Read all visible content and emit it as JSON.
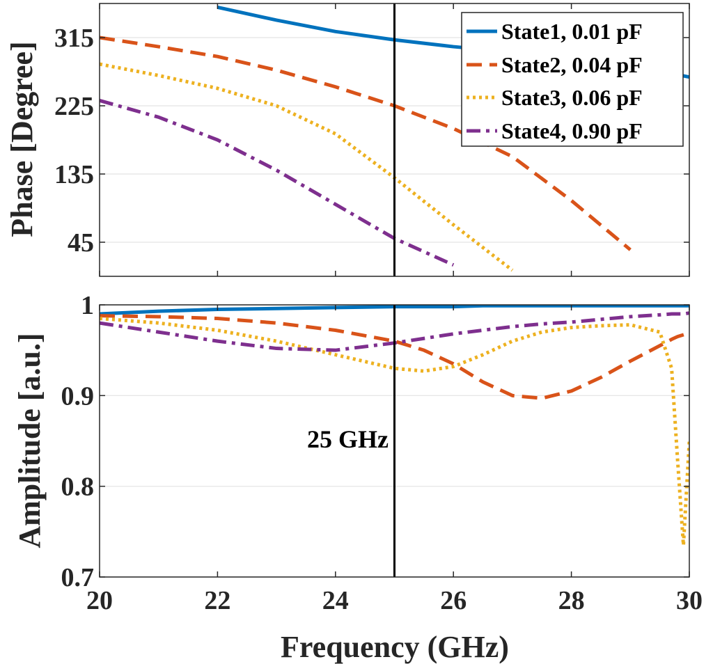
{
  "chart_data": [
    {
      "type": "line",
      "panel": "phase",
      "title": "",
      "xlabel": "",
      "ylabel": "Phase [Degree]",
      "xlim": [
        20,
        30
      ],
      "ylim": [
        0,
        360
      ],
      "yticks": [
        45,
        135,
        225,
        315
      ],
      "yticklabels": [
        "45",
        "135",
        "225",
        "315"
      ],
      "grid": true,
      "legend_position": "top-right",
      "x": [
        20,
        21,
        22,
        23,
        24,
        25,
        26,
        27,
        28,
        29,
        30
      ],
      "series": [
        {
          "name": "State1, 0.01 pF",
          "color": "#0072BD",
          "style": "solid",
          "values": [
            null,
            null,
            355,
            338,
            323,
            312,
            303,
            296,
            288,
            278,
            263
          ]
        },
        {
          "name": "State2, 0.04 pF",
          "color": "#D95319",
          "style": "dashed",
          "values": [
            315,
            303,
            290,
            272,
            250,
            225,
            195,
            158,
            100,
            35,
            null
          ]
        },
        {
          "name": "State3, 0.06 pF",
          "color": "#EDB120",
          "style": "dotted",
          "values": [
            280,
            265,
            248,
            225,
            188,
            130,
            68,
            8,
            null,
            null,
            null
          ]
        },
        {
          "name": "State4, 0.90 pF",
          "color": "#7E2F8E",
          "style": "dashdot",
          "values": [
            232,
            210,
            180,
            140,
            95,
            50,
            15,
            null,
            null,
            null,
            null
          ]
        }
      ],
      "annotations": [
        {
          "type": "vline",
          "x": 25
        }
      ]
    },
    {
      "type": "line",
      "panel": "amplitude",
      "title": "",
      "xlabel": "Frequency (GHz)",
      "ylabel": "Amplitude [a.u.]",
      "xlim": [
        20,
        30
      ],
      "ylim": [
        0.7,
        1.0
      ],
      "xticks": [
        20,
        22,
        24,
        26,
        28,
        30
      ],
      "xticklabels": [
        "20",
        "22",
        "24",
        "26",
        "28",
        "30"
      ],
      "yticks": [
        0.7,
        0.8,
        0.9,
        1.0
      ],
      "yticklabels": [
        "0.7",
        "0.8",
        "0.9",
        "1"
      ],
      "grid": true,
      "x": [
        20,
        21,
        22,
        23,
        24,
        25,
        25.5,
        26,
        26.5,
        27,
        27.5,
        28,
        28.5,
        29,
        29.5,
        29.7,
        29.8,
        29.9,
        30
      ],
      "series": [
        {
          "name": "State1, 0.01 pF",
          "color": "#0072BD",
          "style": "solid",
          "values": [
            0.99,
            0.993,
            0.995,
            0.996,
            0.997,
            0.998,
            0.998,
            0.998,
            0.999,
            0.999,
            0.999,
            0.999,
            0.999,
            0.999,
            0.999,
            0.999,
            0.999,
            0.999,
            0.999
          ]
        },
        {
          "name": "State2, 0.04 pF",
          "color": "#D95319",
          "style": "dashed",
          "values": [
            0.988,
            0.987,
            0.985,
            0.98,
            0.972,
            0.96,
            0.95,
            0.935,
            0.915,
            0.9,
            0.897,
            0.905,
            0.92,
            0.938,
            0.955,
            0.962,
            0.965,
            0.967,
            0.969
          ]
        },
        {
          "name": "State3, 0.06 pF",
          "color": "#EDB120",
          "style": "dotted",
          "values": [
            0.985,
            0.98,
            0.972,
            0.96,
            0.945,
            0.93,
            0.927,
            0.932,
            0.945,
            0.96,
            0.97,
            0.975,
            0.977,
            0.978,
            0.97,
            0.93,
            0.83,
            0.735,
            0.85
          ]
        },
        {
          "name": "State4, 0.90 pF",
          "color": "#7E2F8E",
          "style": "dashdot",
          "values": [
            0.98,
            0.97,
            0.96,
            0.952,
            0.95,
            0.958,
            0.963,
            0.968,
            0.972,
            0.976,
            0.979,
            0.981,
            0.984,
            0.987,
            0.989,
            0.99,
            0.99,
            0.99,
            0.991
          ]
        }
      ],
      "annotations": [
        {
          "type": "vline",
          "x": 25,
          "text": "25 GHz"
        }
      ]
    }
  ]
}
